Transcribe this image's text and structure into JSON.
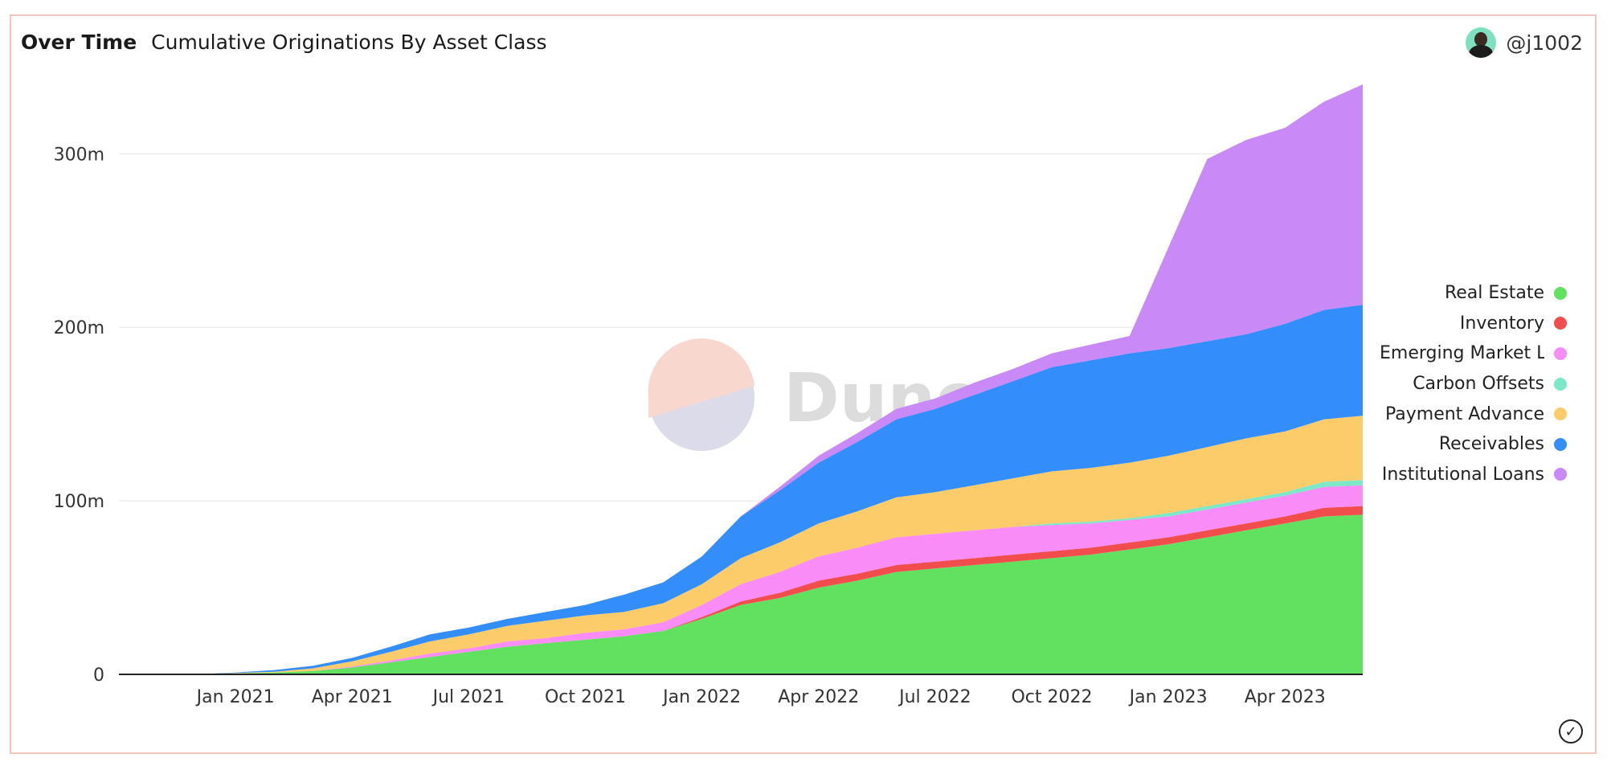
{
  "header": {
    "tab": "Over Time",
    "title": "Cumulative Originations By Asset Class"
  },
  "author": {
    "handle": "@j1002"
  },
  "watermark": {
    "text": "Dune"
  },
  "chart_data": {
    "type": "area",
    "stacked": true,
    "title": "Cumulative Originations By Asset Class",
    "xlabel": "",
    "ylabel": "",
    "ylim": [
      0,
      340
    ],
    "y_unit": "m",
    "y_ticks": [
      "0",
      "100m",
      "200m",
      "300m"
    ],
    "x_ticks": [
      "Jan 2021",
      "Apr 2021",
      "Jul 2021",
      "Oct 2021",
      "Jan 2022",
      "Apr 2022",
      "Jul 2022",
      "Oct 2022",
      "Jan 2023",
      "Apr 2023"
    ],
    "x": [
      "2020-10",
      "2020-11",
      "2020-12",
      "2021-01",
      "2021-02",
      "2021-03",
      "2021-04",
      "2021-05",
      "2021-06",
      "2021-07",
      "2021-08",
      "2021-09",
      "2021-10",
      "2021-11",
      "2021-12",
      "2022-01",
      "2022-02",
      "2022-03",
      "2022-04",
      "2022-05",
      "2022-06",
      "2022-07",
      "2022-08",
      "2022-09",
      "2022-10",
      "2022-11",
      "2022-12",
      "2023-01",
      "2023-02",
      "2023-03",
      "2023-04",
      "2023-05",
      "2023-06"
    ],
    "legend_position": "right",
    "series": [
      {
        "name": "Real Estate",
        "color": "#62e060",
        "values": [
          0,
          0,
          0,
          0.5,
          1,
          2,
          4,
          7,
          10,
          13,
          16,
          18,
          20,
          22,
          25,
          32,
          40,
          44,
          50,
          54,
          59,
          61,
          63,
          65,
          67,
          69,
          72,
          75,
          79,
          83,
          87,
          91,
          92
        ]
      },
      {
        "name": "Inventory",
        "color": "#f24d4d",
        "values": [
          0,
          0,
          0,
          0,
          0,
          0,
          0,
          0,
          0,
          0,
          0,
          0,
          0,
          0,
          0,
          1,
          2,
          3,
          4,
          4,
          4,
          4,
          4,
          4,
          4,
          4,
          4,
          4,
          4,
          4,
          4,
          5,
          5
        ]
      },
      {
        "name": "Emerging Market Lending",
        "color": "#f98cf6",
        "values": [
          0,
          0,
          0,
          0,
          0,
          0,
          0.5,
          1,
          2,
          2,
          3,
          3,
          4,
          4,
          5,
          7,
          10,
          12,
          14,
          15,
          16,
          16,
          16,
          16,
          15,
          14,
          13,
          12,
          12,
          12,
          12,
          12,
          12
        ]
      },
      {
        "name": "Carbon Offsets",
        "color": "#7de8c7",
        "values": [
          0,
          0,
          0,
          0,
          0,
          0,
          0,
          0,
          0,
          0,
          0,
          0,
          0,
          0,
          0,
          0,
          0,
          0,
          0,
          0,
          0,
          0,
          0,
          0,
          1,
          1,
          1,
          2,
          2,
          2,
          2,
          3,
          3
        ]
      },
      {
        "name": "Payment Advance",
        "color": "#fccc6a",
        "values": [
          0,
          0,
          0,
          0.3,
          0.5,
          1.5,
          3,
          5,
          7,
          8,
          9,
          10,
          10,
          10,
          11,
          12,
          15,
          17,
          19,
          21,
          23,
          24,
          26,
          28,
          30,
          31,
          32,
          33,
          34,
          35,
          35,
          36,
          37
        ]
      },
      {
        "name": "Receivables",
        "color": "#338dfa",
        "values": [
          0,
          0,
          0,
          0.3,
          1,
          1.5,
          2,
          3,
          4,
          4,
          4,
          5,
          6,
          10,
          12,
          16,
          24,
          30,
          35,
          40,
          45,
          48,
          52,
          56,
          60,
          62,
          63,
          62,
          61,
          60,
          62,
          63,
          64
        ]
      },
      {
        "name": "Institutional Loans",
        "color": "#c98af7",
        "values": [
          0,
          0,
          0,
          0,
          0,
          0,
          0,
          0,
          0,
          0,
          0,
          0,
          0,
          0,
          0,
          0,
          0,
          2,
          4,
          5,
          6,
          6,
          7,
          7,
          8,
          9,
          10,
          58,
          105,
          112,
          113,
          120,
          127
        ]
      }
    ]
  }
}
